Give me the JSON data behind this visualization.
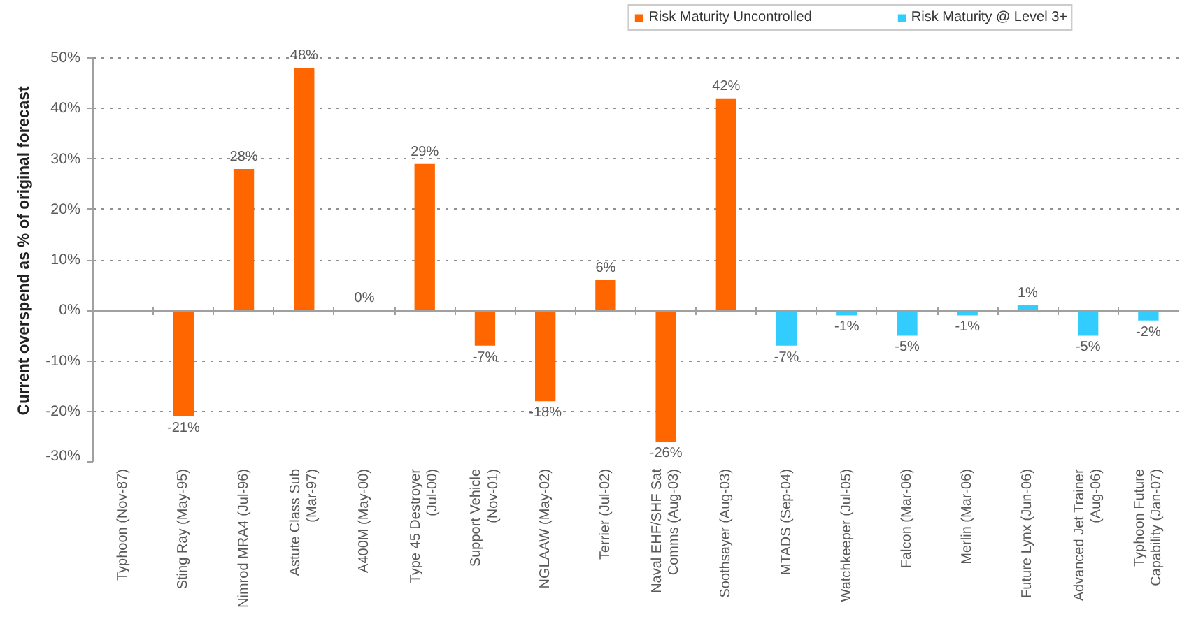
{
  "chart_data": {
    "type": "bar",
    "ylabel": "Current overspend as % of original forecast",
    "categories": [
      "Typhoon (Nov-87)",
      "Sting Ray (May-95)",
      "Nimrod MRA4 (Jul-96)",
      "Astute Class Sub (Mar-97)",
      "A400M (May-00)",
      "Type 45 Destroyer (Jul-00)",
      "Support Vehicle (Nov-01)",
      "NGLAAW (May-02)",
      "Terrier (Jul-02)",
      "Naval EHF/SHF Sat Comms (Aug-03)",
      "Soothsayer (Aug-03)",
      "MTADS (Sep-04)",
      "Watchkeeper (Jul-05)",
      "Falcon (Mar-06)",
      "Merlin (Mar-06)",
      "Future Lynx (Jun-06)",
      "Advanced Jet Trainer (Aug-06)",
      "Typhoon Future Capability (Jan-07)"
    ],
    "series": [
      {
        "name": "Risk Maturity Uncontrolled",
        "color": "#ff6600",
        "values": [
          null,
          -21,
          28,
          48,
          0,
          29,
          -7,
          -18,
          6,
          -26,
          42,
          null,
          null,
          null,
          null,
          null,
          null,
          null
        ],
        "value_labels": [
          null,
          "-21%",
          "28%",
          "48%",
          "0%",
          "29%",
          "-7%",
          "-18%",
          "6%",
          "-26%",
          "42%",
          null,
          null,
          null,
          null,
          null,
          null,
          null
        ]
      },
      {
        "name": "Risk Maturity @ Level 3+",
        "color": "#33ccff",
        "values": [
          null,
          null,
          null,
          null,
          null,
          null,
          null,
          null,
          null,
          null,
          null,
          -7,
          -1,
          -5,
          -1,
          1,
          -5,
          -2
        ],
        "value_labels": [
          null,
          null,
          null,
          null,
          null,
          null,
          null,
          null,
          null,
          null,
          null,
          "-7%",
          "-1%",
          "-5%",
          "-1%",
          "1%",
          "-5%",
          "-2%"
        ]
      }
    ],
    "ylim": [
      -30,
      50
    ],
    "yticks": [
      {
        "value": -30,
        "label": "-30%"
      },
      {
        "value": -20,
        "label": "-20%"
      },
      {
        "value": -10,
        "label": "-10%"
      },
      {
        "value": 0,
        "label": "0%"
      },
      {
        "value": 10,
        "label": "10%"
      },
      {
        "value": 20,
        "label": "20%"
      },
      {
        "value": 30,
        "label": "30%"
      },
      {
        "value": 40,
        "label": "40%"
      },
      {
        "value": 50,
        "label": "50%"
      }
    ],
    "grid": "y",
    "legend": "top right"
  }
}
